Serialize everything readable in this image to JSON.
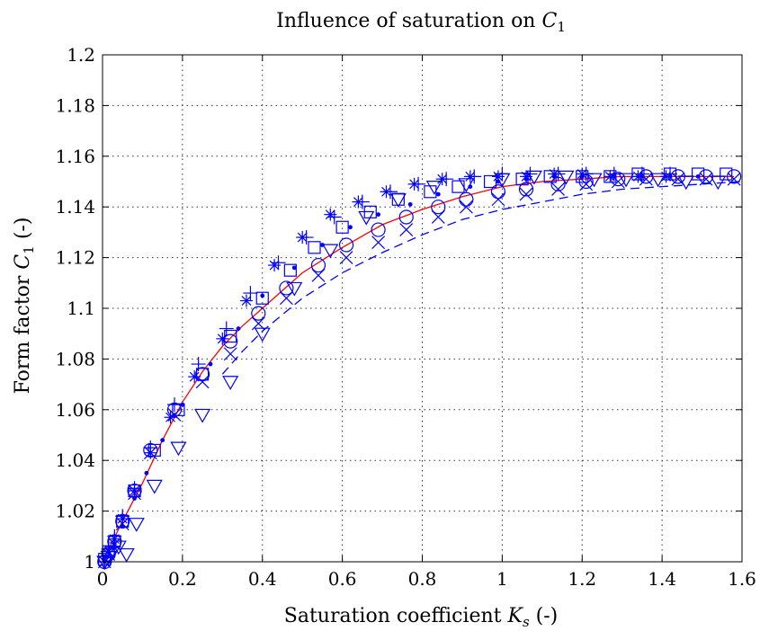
{
  "chart_data": {
    "type": "scatter",
    "title": "Influence of saturation on C",
    "title_subscript": "1",
    "xlabel_prefix": "Saturation coefficient ",
    "xlabel_var": "K",
    "xlabel_sub": "s",
    "xlabel_suffix": " (-)",
    "ylabel_prefix": "Form factor ",
    "ylabel_var": "C",
    "ylabel_sub": "1",
    "ylabel_suffix": " (-)",
    "xlim": [
      0,
      1.6
    ],
    "ylim": [
      1.0,
      1.2
    ],
    "xticks": [
      0,
      0.2,
      0.4,
      0.6,
      0.8,
      1,
      1.2,
      1.4,
      1.6
    ],
    "xtick_labels": [
      "0",
      "0.2",
      "0.4",
      "0.6",
      "0.8",
      "1",
      "1.2",
      "1.4",
      "1.6"
    ],
    "yticks": [
      1.0,
      1.02,
      1.04,
      1.06,
      1.08,
      1.1,
      1.12,
      1.14,
      1.16,
      1.18,
      1.2
    ],
    "ytick_labels": [
      "1",
      "1.02",
      "1.04",
      "1.06",
      "1.08",
      "1.1",
      "1.12",
      "1.14",
      "1.16",
      "1.18",
      "1.2"
    ],
    "grid": true,
    "colors": {
      "markers": "#0000ff",
      "fit_line": "#ff0000",
      "dashed_line": "#0000ff"
    },
    "lines": [
      {
        "style": "solid",
        "color": "#ff0000",
        "x": [
          0,
          0.05,
          0.1,
          0.15,
          0.2,
          0.25,
          0.3,
          0.35,
          0.4,
          0.5,
          0.6,
          0.7,
          0.8,
          0.9,
          1.0,
          1.1,
          1.2,
          1.3,
          1.4,
          1.5,
          1.58
        ],
        "y": [
          1.0,
          1.016,
          1.031,
          1.048,
          1.063,
          1.075,
          1.085,
          1.093,
          1.1,
          1.114,
          1.124,
          1.133,
          1.139,
          1.144,
          1.148,
          1.15,
          1.151,
          1.152,
          1.152,
          1.152,
          1.152
        ]
      },
      {
        "style": "dashed",
        "color": "#0000ff",
        "x": [
          0.3,
          0.35,
          0.4,
          0.5,
          0.6,
          0.7,
          0.8,
          0.9,
          1.0,
          1.1,
          1.2,
          1.3,
          1.4,
          1.5,
          1.6
        ],
        "y": [
          1.074,
          1.083,
          1.091,
          1.104,
          1.114,
          1.122,
          1.129,
          1.135,
          1.139,
          1.142,
          1.145,
          1.147,
          1.148,
          1.149,
          1.15
        ]
      }
    ],
    "series": [
      {
        "marker": "circle",
        "x": [
          0.005,
          0.015,
          0.03,
          0.05,
          0.08,
          0.12,
          0.18,
          0.25,
          0.32,
          0.39,
          0.46,
          0.54,
          0.61,
          0.69,
          0.76,
          0.84,
          0.91,
          0.99,
          1.06,
          1.14,
          1.21,
          1.29,
          1.36,
          1.44,
          1.51,
          1.58
        ],
        "y": [
          1.0,
          1.003,
          1.008,
          1.016,
          1.028,
          1.044,
          1.06,
          1.074,
          1.087,
          1.098,
          1.108,
          1.117,
          1.125,
          1.131,
          1.136,
          1.14,
          1.143,
          1.146,
          1.147,
          1.149,
          1.15,
          1.151,
          1.152,
          1.152,
          1.152,
          1.152
        ]
      },
      {
        "marker": "x",
        "x": [
          0.005,
          0.015,
          0.03,
          0.05,
          0.08,
          0.12,
          0.18,
          0.25,
          0.32,
          0.39,
          0.46,
          0.54,
          0.61,
          0.69,
          0.76,
          0.84,
          0.91,
          0.99,
          1.06,
          1.14,
          1.21,
          1.29,
          1.36,
          1.44,
          1.51,
          1.58
        ],
        "y": [
          1.0,
          1.003,
          1.007,
          1.015,
          1.027,
          1.043,
          1.058,
          1.071,
          1.082,
          1.094,
          1.104,
          1.113,
          1.12,
          1.126,
          1.131,
          1.136,
          1.14,
          1.143,
          1.145,
          1.147,
          1.149,
          1.15,
          1.151,
          1.151,
          1.151,
          1.151
        ]
      },
      {
        "marker": "triangle-down",
        "x": [
          0.005,
          0.015,
          0.025,
          0.04,
          0.06,
          0.085,
          0.13,
          0.19,
          0.25,
          0.32,
          0.4,
          0.48,
          0.57,
          0.66,
          0.74,
          0.83,
          0.91,
          1.0,
          1.08,
          1.16,
          1.23,
          1.31,
          1.39,
          1.46,
          1.54
        ],
        "y": [
          1.0,
          1.002,
          1.004,
          1.006,
          1.003,
          1.015,
          1.03,
          1.045,
          1.058,
          1.071,
          1.09,
          1.108,
          1.123,
          1.136,
          1.143,
          1.148,
          1.149,
          1.151,
          1.152,
          1.152,
          1.151,
          1.151,
          1.151,
          1.15,
          1.15
        ]
      },
      {
        "marker": "square",
        "x": [
          0.005,
          0.015,
          0.03,
          0.05,
          0.08,
          0.13,
          0.19,
          0.25,
          0.32,
          0.4,
          0.47,
          0.53,
          0.6,
          0.67,
          0.74,
          0.82,
          0.89,
          0.97,
          1.05,
          1.12,
          1.2,
          1.27,
          1.34,
          1.42,
          1.49,
          1.56
        ],
        "y": [
          1.001,
          1.004,
          1.008,
          1.016,
          1.028,
          1.044,
          1.06,
          1.074,
          1.089,
          1.104,
          1.115,
          1.124,
          1.132,
          1.138,
          1.143,
          1.146,
          1.148,
          1.15,
          1.151,
          1.152,
          1.152,
          1.152,
          1.153,
          1.153,
          1.153,
          1.153
        ]
      },
      {
        "marker": "plus",
        "x": [
          0.005,
          0.015,
          0.03,
          0.05,
          0.08,
          0.12,
          0.18,
          0.24,
          0.31,
          0.37,
          0.44,
          0.51,
          0.58,
          0.65,
          0.72,
          0.79,
          0.86,
          0.93,
          1.0,
          1.07,
          1.14,
          1.21,
          1.28,
          1.35,
          1.42
        ],
        "y": [
          1.0,
          1.005,
          1.01,
          1.018,
          1.029,
          1.045,
          1.062,
          1.078,
          1.092,
          1.106,
          1.118,
          1.128,
          1.136,
          1.142,
          1.146,
          1.149,
          1.151,
          1.152,
          1.153,
          1.153,
          1.153,
          1.153,
          1.153,
          1.153,
          1.153
        ]
      },
      {
        "marker": "asterisk",
        "x": [
          0.005,
          0.015,
          0.03,
          0.05,
          0.08,
          0.12,
          0.17,
          0.23,
          0.3,
          0.36,
          0.43,
          0.5,
          0.57,
          0.64,
          0.71,
          0.78,
          0.85,
          0.92,
          0.99,
          1.06,
          1.13,
          1.2,
          1.27,
          1.34,
          1.41
        ],
        "y": [
          1.0,
          1.004,
          1.009,
          1.017,
          1.028,
          1.043,
          1.057,
          1.073,
          1.088,
          1.103,
          1.117,
          1.128,
          1.137,
          1.142,
          1.146,
          1.149,
          1.151,
          1.152,
          1.152,
          1.152,
          1.153,
          1.153,
          1.152,
          1.152,
          1.152
        ]
      },
      {
        "marker": "dot",
        "x": [
          0.01,
          0.03,
          0.05,
          0.08,
          0.11,
          0.15,
          0.2,
          0.27,
          0.34,
          0.4,
          0.48,
          0.55,
          0.62,
          0.69,
          0.77,
          0.84,
          0.92,
          0.99,
          1.06,
          1.13,
          1.2,
          1.28,
          1.35,
          1.42,
          1.49
        ],
        "y": [
          1.002,
          1.007,
          1.014,
          1.025,
          1.035,
          1.048,
          1.062,
          1.078,
          1.092,
          1.105,
          1.116,
          1.125,
          1.132,
          1.137,
          1.141,
          1.145,
          1.148,
          1.15,
          1.151,
          1.152,
          1.152,
          1.152,
          1.152,
          1.152,
          1.152
        ]
      }
    ]
  }
}
